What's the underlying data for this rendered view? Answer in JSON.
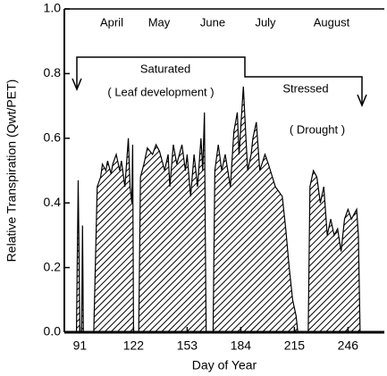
{
  "chart_data": {
    "type": "area",
    "x_label": "Day of Year",
    "y_label": "Relative Transpiration (Qwt/PET)",
    "months": [
      "April",
      "May",
      "June",
      "July",
      "August"
    ],
    "annotations": [
      "Saturated",
      "( Leaf development )",
      "Stressed",
      "( Drought )"
    ],
    "x": [
      82,
      89,
      90,
      91,
      92,
      92.5,
      93,
      99,
      101,
      103,
      104,
      106,
      107,
      109,
      110,
      112,
      114,
      115,
      117,
      119,
      120,
      121,
      121.5,
      122,
      125,
      126,
      128,
      130,
      133,
      135,
      137,
      140,
      142,
      143,
      145,
      147,
      150,
      152,
      153,
      155,
      157,
      159,
      161,
      162,
      163,
      163.5,
      164,
      168,
      169,
      171,
      173,
      175,
      178,
      180,
      182,
      183,
      185.5,
      187,
      188,
      190,
      191,
      193,
      195,
      198,
      200,
      204,
      208,
      210,
      212,
      214,
      216,
      217,
      223,
      224,
      226,
      228,
      230,
      232,
      234,
      236,
      238,
      240,
      242,
      244,
      246,
      248,
      251,
      252,
      253,
      267
    ],
    "values": [
      0,
      0,
      0.47,
      0,
      0,
      0.33,
      0,
      0,
      0.45,
      0.48,
      0.52,
      0.5,
      0.53,
      0.49,
      0.52,
      0.55,
      0.5,
      0.53,
      0.45,
      0.6,
      0.45,
      0.4,
      0.58,
      0,
      0,
      0.48,
      0.52,
      0.57,
      0.55,
      0.58,
      0.56,
      0.5,
      0.55,
      0.45,
      0.58,
      0.52,
      0.58,
      0.5,
      0.55,
      0.42,
      0.55,
      0.45,
      0.6,
      0.5,
      0.68,
      0.3,
      0,
      0,
      0.5,
      0.58,
      0.5,
      0.55,
      0.45,
      0.62,
      0.68,
      0.55,
      0.76,
      0.6,
      0.5,
      0.55,
      0.6,
      0.65,
      0.5,
      0.55,
      0.52,
      0.45,
      0.42,
      0.32,
      0.2,
      0.1,
      0.05,
      0,
      0,
      0.45,
      0.5,
      0.48,
      0.4,
      0.45,
      0.3,
      0.35,
      0.3,
      0.32,
      0.25,
      0.35,
      0.38,
      0.35,
      0.38,
      0.3,
      0,
      0
    ],
    "color": "#000000",
    "xlim": [
      82,
      267
    ],
    "xticks": [
      91,
      122,
      153,
      184,
      215,
      246
    ],
    "ylim": [
      0,
      1
    ],
    "yticks": [
      {
        "value": 0,
        "label": "0.0"
      },
      0.2,
      0.4,
      0.6,
      0.8,
      {
        "value": 1,
        "label": "1.0"
      }
    ]
  }
}
